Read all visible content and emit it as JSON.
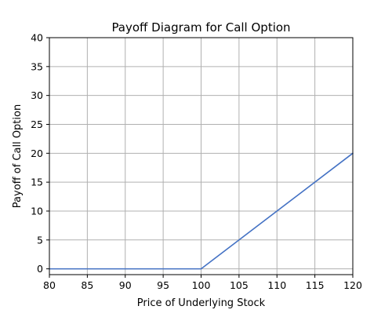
{
  "chart_data": {
    "type": "line",
    "title": "Payoff Diagram for Call Option",
    "xlabel": "Price of Underlying Stock",
    "ylabel": "Payoff of Call Option",
    "xlim": [
      80,
      120
    ],
    "ylim": [
      -1,
      40
    ],
    "x_ticks": [
      80,
      85,
      90,
      95,
      100,
      105,
      110,
      115,
      120
    ],
    "y_ticks": [
      0,
      5,
      10,
      15,
      20,
      25,
      30,
      35,
      40
    ],
    "grid": true,
    "legend": "none",
    "series": [
      {
        "color": "#4472c4",
        "x": [
          80,
          100,
          120
        ],
        "y": [
          0,
          0,
          20
        ]
      }
    ]
  }
}
